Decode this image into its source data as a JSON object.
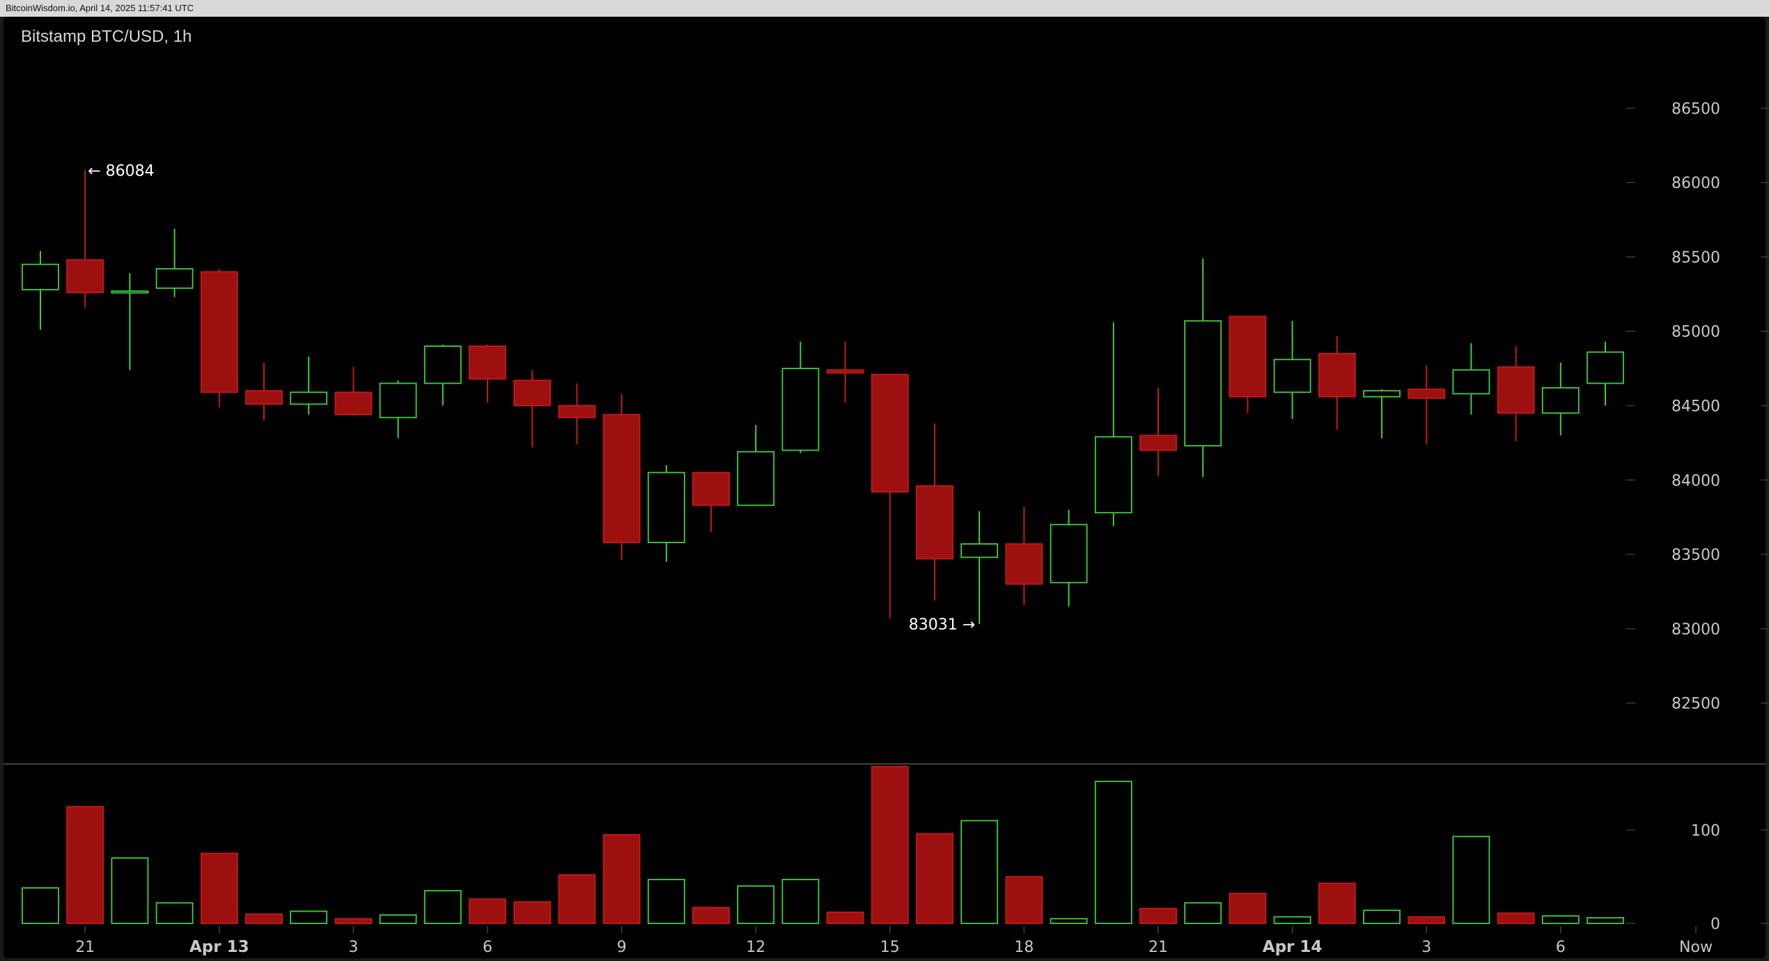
{
  "header": {
    "text": "BitcoinWisdom.io, April 14, 2025 11:57:41 UTC"
  },
  "colors": {
    "up": "#3ecf3e",
    "down": "#9c1010",
    "down_stroke": "#c81818",
    "background": "#000000",
    "grid": "#3a3a3a"
  },
  "chart_data": {
    "type": "candlestick",
    "title": "Bitstamp BTC/USD, 1h",
    "ylim": [
      82100,
      86900
    ],
    "y_ticks": [
      86500,
      86000,
      85500,
      85000,
      84500,
      84000,
      83500,
      83000,
      82500
    ],
    "volume_ylim": [
      0,
      170
    ],
    "volume_ticks": [
      100,
      0
    ],
    "x_ticks": [
      {
        "label": "21",
        "index": 1,
        "bold": false
      },
      {
        "label": "Apr 13",
        "index": 4,
        "bold": true
      },
      {
        "label": "3",
        "index": 7,
        "bold": false
      },
      {
        "label": "6",
        "index": 10,
        "bold": false
      },
      {
        "label": "9",
        "index": 13,
        "bold": false
      },
      {
        "label": "12",
        "index": 16,
        "bold": false
      },
      {
        "label": "15",
        "index": 19,
        "bold": false
      },
      {
        "label": "18",
        "index": 22,
        "bold": false
      },
      {
        "label": "21",
        "index": 25,
        "bold": false
      },
      {
        "label": "Apr 14",
        "index": 28,
        "bold": true
      },
      {
        "label": "3",
        "index": 31,
        "bold": false
      },
      {
        "label": "6",
        "index": 34,
        "bold": false
      },
      {
        "label": "Now",
        "index": 37,
        "bold": false
      }
    ],
    "candles": [
      {
        "o": 85280,
        "h": 85540,
        "l": 85010,
        "c": 85450,
        "v": 38
      },
      {
        "o": 85480,
        "h": 86084,
        "l": 85160,
        "c": 85260,
        "v": 125
      },
      {
        "o": 85260,
        "h": 85390,
        "l": 84740,
        "c": 85270,
        "v": 70
      },
      {
        "o": 85290,
        "h": 85690,
        "l": 85230,
        "c": 85420,
        "v": 22
      },
      {
        "o": 85400,
        "h": 85420,
        "l": 84490,
        "c": 84590,
        "v": 75
      },
      {
        "o": 84600,
        "h": 84790,
        "l": 84400,
        "c": 84510,
        "v": 10
      },
      {
        "o": 84510,
        "h": 84830,
        "l": 84440,
        "c": 84590,
        "v": 13
      },
      {
        "o": 84590,
        "h": 84760,
        "l": 84430,
        "c": 84440,
        "v": 5
      },
      {
        "o": 84420,
        "h": 84670,
        "l": 84280,
        "c": 84650,
        "v": 9
      },
      {
        "o": 84650,
        "h": 84910,
        "l": 84500,
        "c": 84900,
        "v": 35
      },
      {
        "o": 84900,
        "h": 84910,
        "l": 84520,
        "c": 84680,
        "v": 26
      },
      {
        "o": 84670,
        "h": 84740,
        "l": 84220,
        "c": 84500,
        "v": 23
      },
      {
        "o": 84500,
        "h": 84650,
        "l": 84240,
        "c": 84420,
        "v": 52
      },
      {
        "o": 84440,
        "h": 84580,
        "l": 83460,
        "c": 83580,
        "v": 95
      },
      {
        "o": 83580,
        "h": 84100,
        "l": 83450,
        "c": 84050,
        "v": 47
      },
      {
        "o": 84050,
        "h": 84050,
        "l": 83650,
        "c": 83830,
        "v": 17
      },
      {
        "o": 83830,
        "h": 84370,
        "l": 83830,
        "c": 84190,
        "v": 40
      },
      {
        "o": 84200,
        "h": 84930,
        "l": 84180,
        "c": 84750,
        "v": 47
      },
      {
        "o": 84740,
        "h": 84930,
        "l": 84520,
        "c": 84720,
        "v": 12
      },
      {
        "o": 84710,
        "h": 84710,
        "l": 83070,
        "c": 83920,
        "v": 168
      },
      {
        "o": 83960,
        "h": 84380,
        "l": 83190,
        "c": 83470,
        "v": 96
      },
      {
        "o": 83480,
        "h": 83790,
        "l": 83031,
        "c": 83570,
        "v": 110
      },
      {
        "o": 83570,
        "h": 83820,
        "l": 83160,
        "c": 83300,
        "v": 50
      },
      {
        "o": 83310,
        "h": 83800,
        "l": 83150,
        "c": 83700,
        "v": 5
      },
      {
        "o": 83780,
        "h": 85060,
        "l": 83690,
        "c": 84290,
        "v": 152
      },
      {
        "o": 84300,
        "h": 84620,
        "l": 84030,
        "c": 84200,
        "v": 16
      },
      {
        "o": 84230,
        "h": 85490,
        "l": 84020,
        "c": 85070,
        "v": 22
      },
      {
        "o": 85100,
        "h": 85100,
        "l": 84450,
        "c": 84560,
        "v": 32
      },
      {
        "o": 84590,
        "h": 85070,
        "l": 84410,
        "c": 84810,
        "v": 7
      },
      {
        "o": 84850,
        "h": 84970,
        "l": 84340,
        "c": 84560,
        "v": 43
      },
      {
        "o": 84560,
        "h": 84610,
        "l": 84280,
        "c": 84600,
        "v": 14
      },
      {
        "o": 84610,
        "h": 84770,
        "l": 84240,
        "c": 84550,
        "v": 7
      },
      {
        "o": 84580,
        "h": 84920,
        "l": 84440,
        "c": 84740,
        "v": 93
      },
      {
        "o": 84760,
        "h": 84900,
        "l": 84260,
        "c": 84450,
        "v": 11
      },
      {
        "o": 84450,
        "h": 84790,
        "l": 84300,
        "c": 84620,
        "v": 8
      },
      {
        "o": 84650,
        "h": 84930,
        "l": 84500,
        "c": 84860,
        "v": 6
      }
    ],
    "annotations": [
      {
        "text": "← 86084",
        "index": 1,
        "price": 86084,
        "side": "right"
      },
      {
        "text": "83031 →",
        "index": 21,
        "price": 83031,
        "side": "left"
      }
    ]
  }
}
